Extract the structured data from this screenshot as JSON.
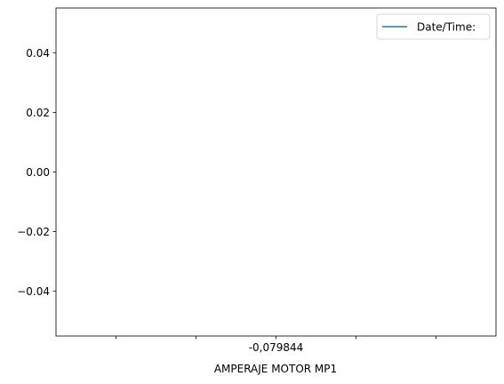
{
  "chart_data": {
    "type": "line",
    "x_categories": [
      "",
      "",
      "-0,079844",
      "",
      ""
    ],
    "xlabel": "AMPERAJE MOTOR MP1",
    "ylabel": "",
    "ylim": [
      -0.055,
      0.055
    ],
    "yticks": [
      -0.04,
      -0.02,
      0.0,
      0.02,
      0.04
    ],
    "ytick_labels": [
      "−0.04",
      "−0.02",
      "0.00",
      "0.02",
      "0.04"
    ],
    "grid": false,
    "legend_position": "top-right",
    "series": [
      {
        "name": "Date/Time:",
        "color": "#1f77b4",
        "values": []
      }
    ]
  }
}
